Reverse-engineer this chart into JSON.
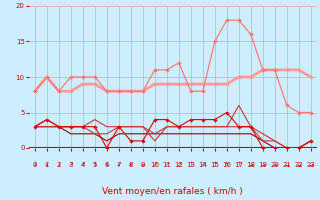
{
  "bg_color": "#cceeff",
  "grid_color": "#ff9999",
  "xlim": [
    -0.5,
    23.5
  ],
  "ylim": [
    0,
    20
  ],
  "yticks": [
    0,
    5,
    10,
    15,
    20
  ],
  "xticks": [
    0,
    1,
    2,
    3,
    4,
    5,
    6,
    7,
    8,
    9,
    10,
    11,
    12,
    13,
    14,
    15,
    16,
    17,
    18,
    19,
    20,
    21,
    22,
    23
  ],
  "xlabel": "Vent moyen/en rafales ( km/h )",
  "xlabel_color": "#cc0000",
  "xlabel_fontsize": 6.5,
  "tick_color": "#cc0000",
  "tick_fontsize": 5.0,
  "arrow_symbols": [
    "↓",
    "↙",
    "↓",
    "↗",
    "↗",
    "↓",
    "↓",
    "↙",
    "↙",
    "←",
    "↗",
    "↗",
    "↗",
    "↑",
    "↗",
    "↑",
    "↖",
    "↑",
    "→",
    "→",
    "→",
    "→",
    "→",
    "→"
  ],
  "series": [
    {
      "x": [
        0,
        1,
        2,
        3,
        4,
        5,
        6,
        7,
        8,
        9,
        10,
        11,
        12,
        13,
        14,
        15,
        16,
        17,
        18,
        19,
        20,
        21,
        22,
        23
      ],
      "y": [
        3,
        4,
        3,
        3,
        3,
        3,
        0,
        3,
        1,
        1,
        4,
        4,
        3,
        4,
        4,
        4,
        5,
        3,
        3,
        0,
        0,
        0,
        0,
        1
      ],
      "color": "#dd0000",
      "lw": 0.8,
      "marker": "D",
      "ms": 1.8,
      "zorder": 5
    },
    {
      "x": [
        0,
        1,
        2,
        3,
        4,
        5,
        6,
        7,
        8,
        9,
        10,
        11,
        12,
        13,
        14,
        15,
        16,
        17,
        18,
        19,
        20,
        21,
        22,
        23
      ],
      "y": [
        3,
        3,
        3,
        2,
        2,
        2,
        1,
        2,
        2,
        2,
        2,
        2,
        2,
        2,
        2,
        2,
        2,
        2,
        2,
        1,
        0,
        0,
        0,
        0
      ],
      "color": "#990000",
      "lw": 0.8,
      "marker": null,
      "ms": 0,
      "zorder": 4
    },
    {
      "x": [
        0,
        1,
        2,
        3,
        4,
        5,
        6,
        7,
        8,
        9,
        10,
        11,
        12,
        13,
        14,
        15,
        16,
        17,
        18,
        19,
        20,
        21,
        22,
        23
      ],
      "y": [
        8,
        10,
        8,
        8,
        9,
        9,
        8,
        8,
        8,
        8,
        9,
        9,
        9,
        9,
        9,
        9,
        9,
        10,
        10,
        11,
        11,
        11,
        11,
        10
      ],
      "color": "#ff9999",
      "lw": 2.0,
      "marker": "D",
      "ms": 2.0,
      "zorder": 2
    },
    {
      "x": [
        0,
        1,
        2,
        3,
        4,
        5,
        6,
        7,
        8,
        9,
        10,
        11,
        12,
        13,
        14,
        15,
        16,
        17,
        18,
        19,
        20,
        21,
        22,
        23
      ],
      "y": [
        8,
        10,
        8,
        10,
        10,
        10,
        8,
        8,
        8,
        8,
        11,
        11,
        12,
        8,
        8,
        15,
        18,
        18,
        16,
        11,
        11,
        6,
        5,
        5
      ],
      "color": "#ff7777",
      "lw": 0.9,
      "marker": "D",
      "ms": 2.0,
      "zorder": 3
    },
    {
      "x": [
        0,
        1,
        2,
        3,
        4,
        5,
        6,
        7,
        8,
        9,
        10,
        11,
        12,
        13,
        14,
        15,
        16,
        17,
        18,
        19,
        20,
        21,
        22,
        23
      ],
      "y": [
        3,
        3,
        3,
        3,
        3,
        2,
        2,
        3,
        3,
        3,
        1,
        3,
        3,
        3,
        3,
        3,
        3,
        6,
        3,
        1,
        1,
        0,
        0,
        1
      ],
      "color": "#cc3333",
      "lw": 0.8,
      "marker": null,
      "ms": 0,
      "zorder": 4
    },
    {
      "x": [
        0,
        1,
        2,
        3,
        4,
        5,
        6,
        7,
        8,
        9,
        10,
        11,
        12,
        13,
        14,
        15,
        16,
        17,
        18,
        19,
        20,
        21,
        22,
        23
      ],
      "y": [
        3,
        4,
        3,
        3,
        3,
        4,
        3,
        3,
        3,
        3,
        2,
        3,
        3,
        3,
        3,
        3,
        3,
        3,
        3,
        2,
        1,
        0,
        0,
        1
      ],
      "color": "#cc3333",
      "lw": 0.8,
      "marker": null,
      "ms": 0,
      "zorder": 4
    }
  ]
}
